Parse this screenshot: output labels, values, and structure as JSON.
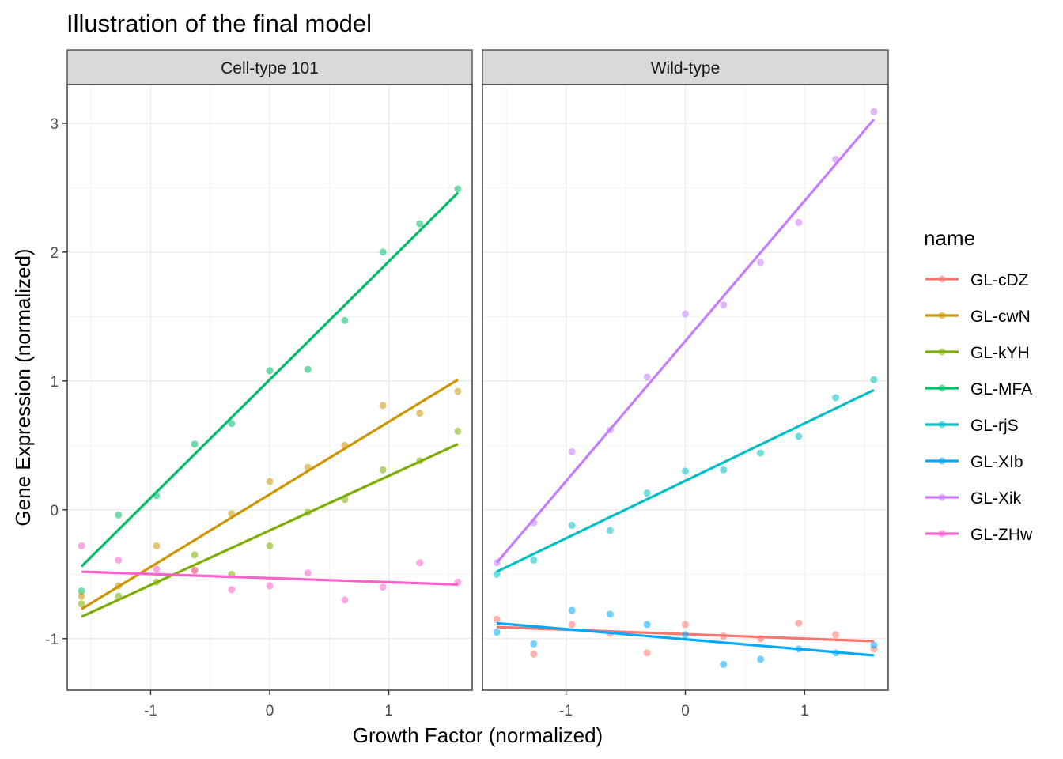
{
  "chart_data": {
    "type": "scatter",
    "title": "Illustration of the final model",
    "xlabel": "Growth Factor (normalized)",
    "ylabel": "Gene Expression (normalized)",
    "xlim": [
      -1.7,
      1.7
    ],
    "ylim": [
      -1.4,
      3.3
    ],
    "x_ticks": [
      -1,
      0,
      1
    ],
    "y_ticks": [
      -1,
      0,
      1,
      2,
      3
    ],
    "grid": true,
    "legend": {
      "title": "name",
      "position": "right"
    },
    "series_colors": {
      "GL-cDZ": "#F8766D",
      "GL-cwN": "#CD9600",
      "GL-kYH": "#7CAE00",
      "GL-MFA": "#00BE67",
      "GL-rjS": "#00BFC4",
      "GL-XIb": "#00A9FF",
      "GL-Xik": "#C77CFF",
      "GL-ZHw": "#FF61CC"
    },
    "legend_items": [
      "GL-cDZ",
      "GL-cwN",
      "GL-kYH",
      "GL-MFA",
      "GL-rjS",
      "GL-XIb",
      "GL-Xik",
      "GL-ZHw"
    ],
    "panels": [
      {
        "label": "Cell-type 101",
        "series": [
          {
            "name": "GL-MFA",
            "x": [
              -1.58,
              -1.27,
              -0.95,
              -0.63,
              -0.32,
              0.0,
              0.32,
              0.63,
              0.95,
              1.26,
              1.58
            ],
            "y": [
              -0.63,
              -0.04,
              0.11,
              0.51,
              0.67,
              1.08,
              1.09,
              1.47,
              2.0,
              2.22,
              2.49
            ],
            "fit": [
              [
                -1.58,
                -0.44
              ],
              [
                1.58,
                2.46
              ]
            ]
          },
          {
            "name": "GL-cwN",
            "x": [
              -1.58,
              -1.27,
              -0.95,
              -0.63,
              -0.32,
              0.0,
              0.32,
              0.63,
              0.95,
              1.26,
              1.58
            ],
            "y": [
              -0.67,
              -0.59,
              -0.28,
              -0.47,
              -0.03,
              0.22,
              0.33,
              0.5,
              0.81,
              0.75,
              0.92
            ],
            "fit": [
              [
                -1.58,
                -0.77
              ],
              [
                1.58,
                1.01
              ]
            ]
          },
          {
            "name": "GL-kYH",
            "x": [
              -1.58,
              -1.27,
              -0.95,
              -0.63,
              -0.32,
              0.0,
              0.32,
              0.63,
              0.95,
              1.26,
              1.58
            ],
            "y": [
              -0.73,
              -0.67,
              -0.56,
              -0.35,
              -0.5,
              -0.28,
              -0.02,
              0.08,
              0.31,
              0.38,
              0.61
            ],
            "fit": [
              [
                -1.58,
                -0.83
              ],
              [
                1.58,
                0.51
              ]
            ]
          },
          {
            "name": "GL-ZHw",
            "x": [
              -1.58,
              -1.27,
              -0.95,
              -0.63,
              -0.32,
              0.0,
              0.32,
              0.63,
              0.95,
              1.26,
              1.58
            ],
            "y": [
              -0.28,
              -0.39,
              -0.46,
              -0.47,
              -0.62,
              -0.59,
              -0.49,
              -0.7,
              -0.6,
              -0.41,
              -0.56
            ],
            "fit": [
              [
                -1.58,
                -0.48
              ],
              [
                1.58,
                -0.58
              ]
            ]
          }
        ]
      },
      {
        "label": "Wild-type",
        "series": [
          {
            "name": "GL-Xik",
            "x": [
              -1.58,
              -1.27,
              -0.95,
              -0.63,
              -0.32,
              0.0,
              0.32,
              0.63,
              0.95,
              1.26,
              1.58
            ],
            "y": [
              -0.41,
              -0.1,
              0.45,
              0.62,
              1.03,
              1.52,
              1.59,
              1.92,
              2.23,
              2.72,
              3.09
            ],
            "fit": [
              [
                -1.58,
                -0.41
              ],
              [
                1.58,
                3.03
              ]
            ]
          },
          {
            "name": "GL-rjS",
            "x": [
              -1.58,
              -1.27,
              -0.95,
              -0.63,
              -0.32,
              0.0,
              0.32,
              0.63,
              0.95,
              1.26,
              1.58
            ],
            "y": [
              -0.5,
              -0.39,
              -0.12,
              -0.16,
              0.13,
              0.3,
              0.31,
              0.44,
              0.57,
              0.87,
              1.01
            ],
            "fit": [
              [
                -1.58,
                -0.48
              ],
              [
                1.58,
                0.93
              ]
            ]
          },
          {
            "name": "GL-cDZ",
            "x": [
              -1.58,
              -1.27,
              -0.95,
              -0.63,
              -0.32,
              0.0,
              0.32,
              0.63,
              0.95,
              1.26,
              1.58
            ],
            "y": [
              -0.85,
              -1.12,
              -0.89,
              -0.96,
              -1.11,
              -0.89,
              -0.98,
              -1.0,
              -0.88,
              -0.97,
              -1.08
            ],
            "fit": [
              [
                -1.58,
                -0.91
              ],
              [
                1.58,
                -1.02
              ]
            ]
          },
          {
            "name": "GL-XIb",
            "x": [
              -1.58,
              -1.27,
              -0.95,
              -0.63,
              -0.32,
              0.0,
              0.32,
              0.63,
              0.95,
              1.26,
              1.58
            ],
            "y": [
              -0.95,
              -1.04,
              -0.78,
              -0.81,
              -0.89,
              -0.97,
              -1.2,
              -1.16,
              -1.08,
              -1.11,
              -1.05
            ],
            "fit": [
              [
                -1.58,
                -0.88
              ],
              [
                1.58,
                -1.13
              ]
            ]
          }
        ]
      }
    ]
  }
}
